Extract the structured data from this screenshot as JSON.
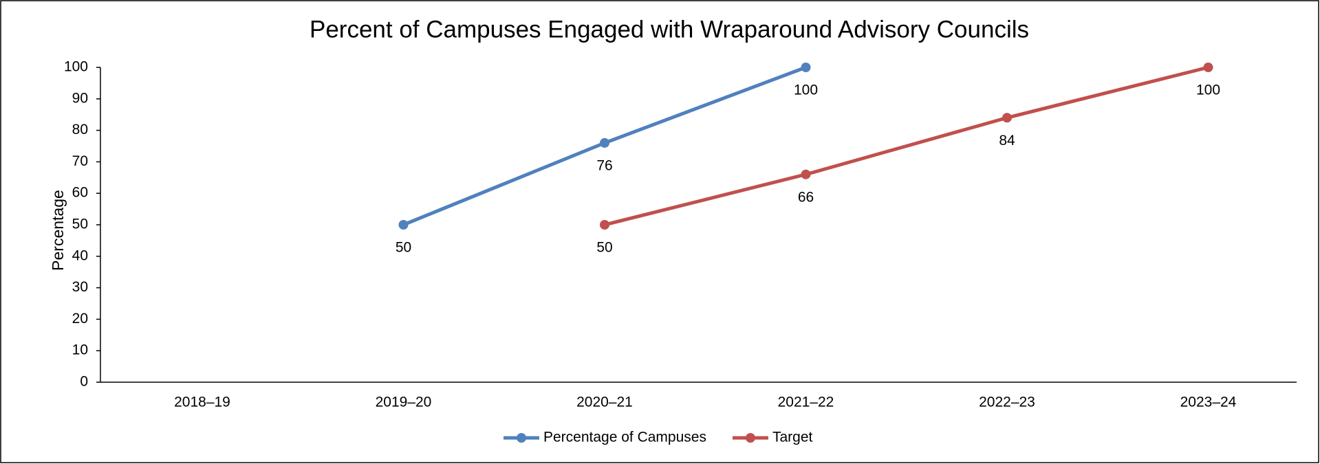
{
  "chart_data": {
    "type": "line",
    "title": "Percent of Campuses Engaged with Wraparound Advisory Councils",
    "y_label": "Percentage",
    "categories": [
      "2018–19",
      "2019–20",
      "2020–21",
      "2021–22",
      "2022–23",
      "2023–24"
    ],
    "series": [
      {
        "name": "Percentage of Campuses",
        "color": "#4f81bd",
        "values": [
          null,
          50,
          76,
          100,
          null,
          null
        ]
      },
      {
        "name": "Target",
        "color": "#c0504d",
        "values": [
          null,
          null,
          50,
          66,
          84,
          100
        ]
      }
    ],
    "ylim": [
      0,
      100
    ],
    "yticks": [
      0,
      10,
      20,
      30,
      40,
      50,
      60,
      70,
      80,
      90,
      100
    ],
    "legend": "bottom"
  }
}
